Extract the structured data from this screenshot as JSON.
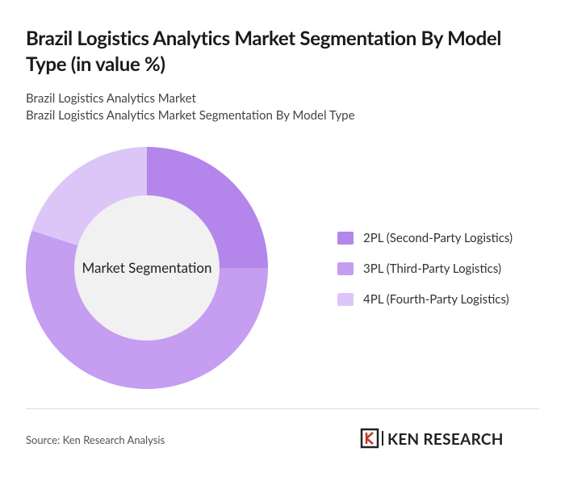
{
  "chart_data": {
    "type": "donut",
    "title": "Brazil Logistics Analytics Market Segmentation By Model Type (in value %)",
    "subtitle": [
      "Brazil Logistics Analytics Market",
      "Brazil Logistics Analytics Market Segmentation By Model Type"
    ],
    "center_label": "Market Segmentation",
    "categories": [
      "2PL (Second-Party Logistics)",
      "3PL (Third-Party Logistics)",
      "4PL (Fourth-Party Logistics)"
    ],
    "values": [
      25,
      55,
      20
    ],
    "colors": [
      "#b486ec",
      "#c59df1",
      "#dcc6f7"
    ],
    "source": "Source: Ken Research Analysis",
    "logo": "KEN RESEARCH"
  }
}
